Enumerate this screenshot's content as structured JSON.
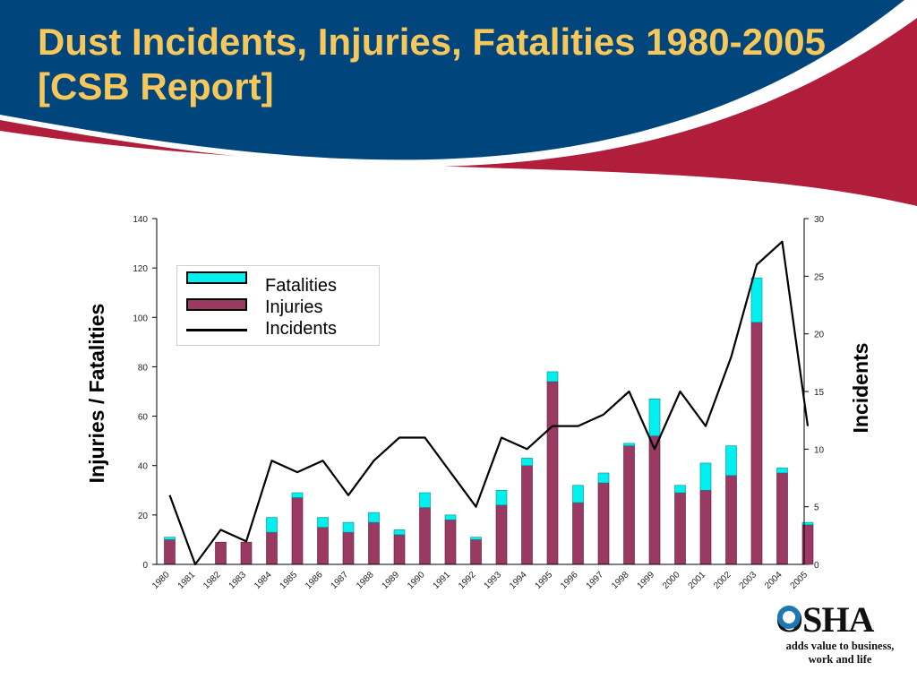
{
  "slide": {
    "title": "Dust Incidents, Injuries, Fatalities 1980-2005 [CSB Report]"
  },
  "logo": {
    "name": "OSHA",
    "tagline_line1": "adds value to business,",
    "tagline_line2": "work and life"
  },
  "colors": {
    "banner_blue": "#00457c",
    "banner_red": "#b01e3c",
    "title_yellow": "#f6c75a",
    "fatalities": "#00f0f0",
    "injuries": "#9a3a63",
    "incidents": "#000000"
  },
  "chart_data": {
    "type": "bar",
    "categories": [
      "1980",
      "1981",
      "1982",
      "1983",
      "1984",
      "1985",
      "1986",
      "1987",
      "1988",
      "1989",
      "1990",
      "1991",
      "1992",
      "1993",
      "1994",
      "1995",
      "1996",
      "1997",
      "1998",
      "1999",
      "2000",
      "2001",
      "2002",
      "2003",
      "2004",
      "2005"
    ],
    "series": [
      {
        "name": "Injuries",
        "kind": "stacked-bar",
        "axis": "left",
        "values": [
          10,
          0,
          9,
          9,
          13,
          27,
          15,
          13,
          17,
          12,
          23,
          18,
          10,
          24,
          40,
          74,
          25,
          33,
          48,
          52,
          29,
          30,
          36,
          98,
          37,
          16
        ]
      },
      {
        "name": "Fatalities",
        "kind": "stacked-bar",
        "axis": "left",
        "values": [
          1,
          0,
          0,
          0,
          6,
          2,
          4,
          4,
          4,
          2,
          6,
          2,
          1,
          6,
          3,
          4,
          7,
          4,
          1,
          15,
          3,
          11,
          12,
          18,
          2,
          1
        ]
      },
      {
        "name": "Incidents",
        "kind": "line",
        "axis": "right",
        "values": [
          6,
          0,
          3,
          2,
          9,
          8,
          9,
          6,
          9,
          11,
          11,
          8,
          5,
          11,
          10,
          12,
          12,
          13,
          15,
          10,
          15,
          12,
          18,
          26,
          28,
          12
        ]
      }
    ],
    "legend": [
      "Fatalities",
      "Injuries",
      "Incidents"
    ],
    "legend_placement": "top-left",
    "ylabel_left": "Injuries / Fatalities",
    "ylabel_right": "Incidents",
    "ylim_left": [
      0,
      140
    ],
    "yticks_left": [
      "0",
      "20",
      "40",
      "60",
      "80",
      "100",
      "120",
      "140"
    ],
    "ylim_right": [
      0,
      30
    ],
    "yticks_right": [
      "0",
      "5",
      "10",
      "15",
      "20",
      "25",
      "30"
    ],
    "grid": false
  }
}
